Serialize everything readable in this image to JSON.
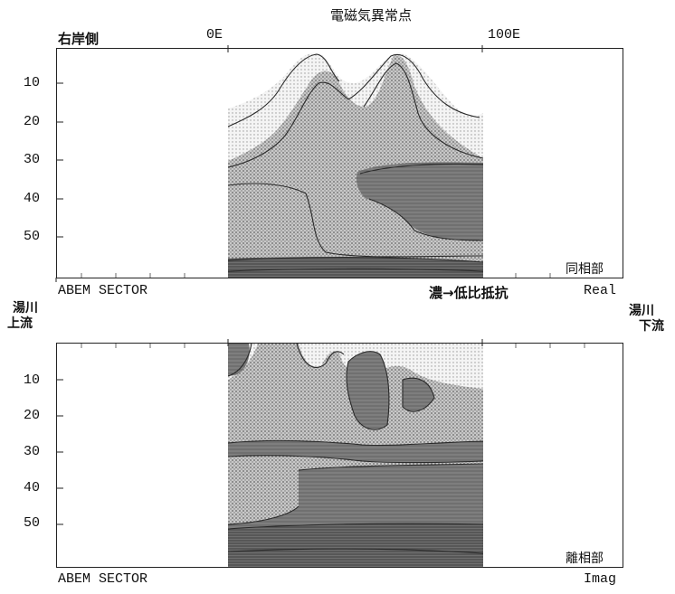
{
  "header": {
    "title": "電磁気異常点"
  },
  "top_panel": {
    "left_bank_label": "右岸側",
    "x_tick_left": "0E",
    "x_tick_right": "100E",
    "depth_ticks": [
      "10",
      "20",
      "30",
      "40",
      "50"
    ],
    "corner_label": "同相部",
    "footer_left": "ABEM SECTOR",
    "footer_right": "Real"
  },
  "legend_note": "濃→低比抵抗",
  "upstream_label": [
    "湯川",
    "上流"
  ],
  "downstream_label": [
    "湯川",
    "下流"
  ],
  "bottom_panel": {
    "depth_ticks": [
      "10",
      "20",
      "30",
      "40",
      "50"
    ],
    "corner_label": "離相部",
    "footer_left": "ABEM SECTOR",
    "footer_right": "Imag"
  }
}
